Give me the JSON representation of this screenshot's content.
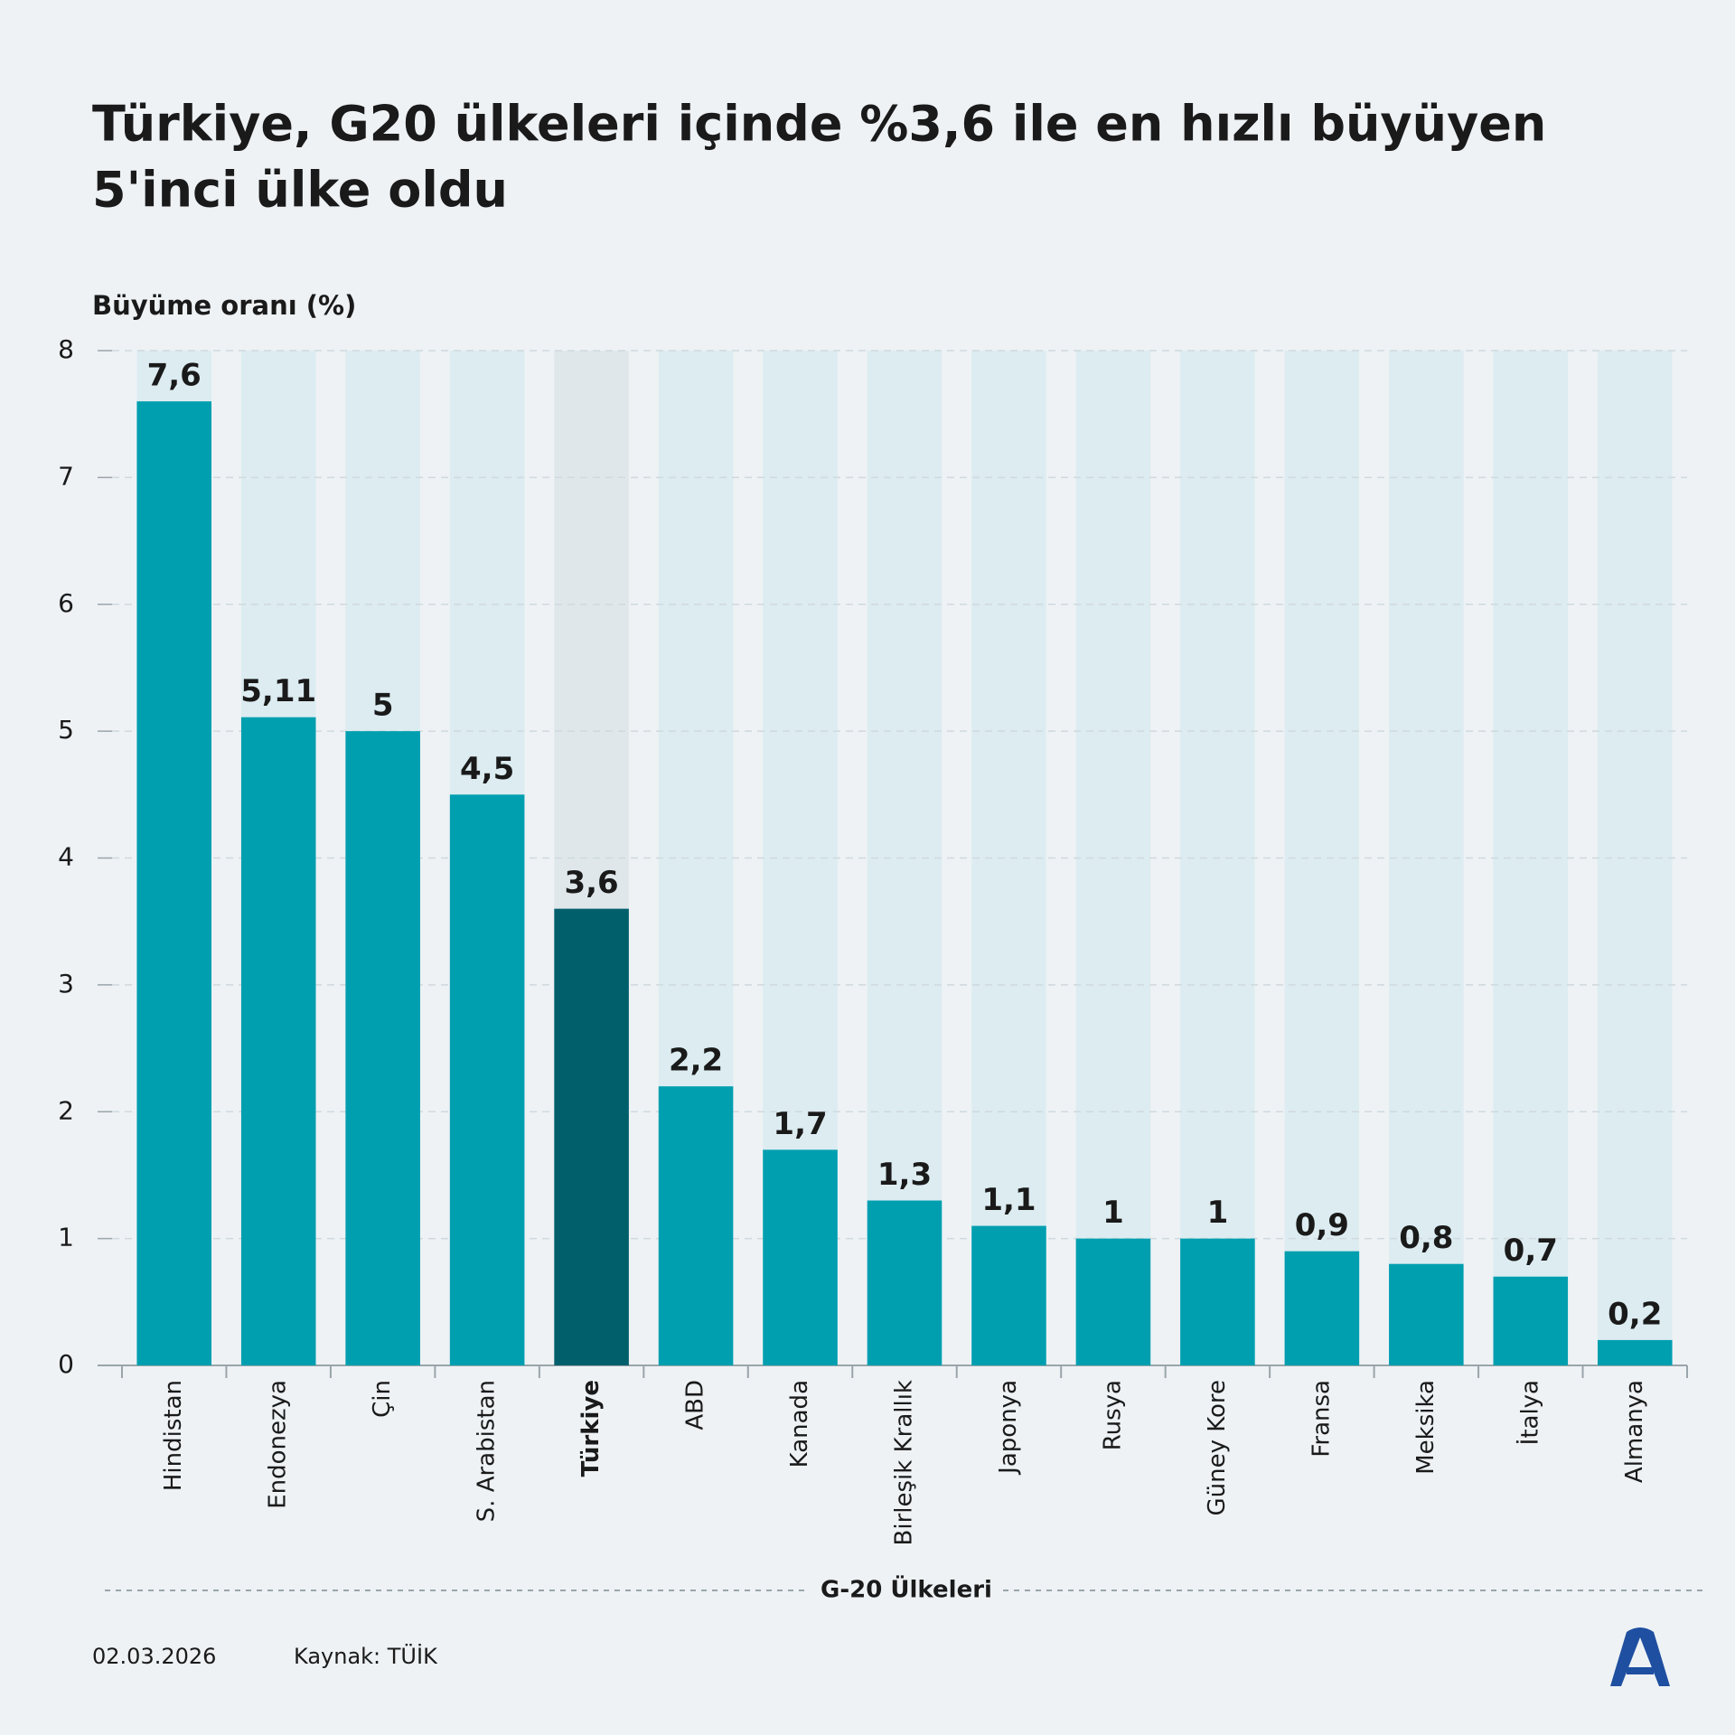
{
  "chart_data": {
    "type": "bar",
    "title": [
      "Türkiye, G20 ülkeleri içinde %3,6 ile en hızlı büyüyen",
      "5'inci ülke oldu"
    ],
    "y_label": "Büyüme oranı (%)",
    "x_label": "G-20 Ülkeleri",
    "categories": [
      "Hindistan",
      "Endonezya",
      "Çin",
      "S. Arabistan",
      "Türkiye",
      "ABD",
      "Kanada",
      "Birleşik Krallık",
      "Japonya",
      "Rusya",
      "Güney Kore",
      "Fransa",
      "Meksika",
      "İtalya",
      "Almanya"
    ],
    "values": [
      7.6,
      5.11,
      5,
      4.5,
      3.6,
      2.2,
      1.7,
      1.3,
      1.1,
      1,
      1,
      0.9,
      0.8,
      0.7,
      0.2
    ],
    "value_labels": [
      "7,6",
      "5,11",
      "5",
      "4,5",
      "3,6",
      "2,2",
      "1,7",
      "1,3",
      "1,1",
      "1",
      "1",
      "0,9",
      "0,8",
      "0,7",
      "0,2"
    ],
    "color": "#009fb0",
    "highlight": "Türkiye",
    "highlight_color": "#005f6b",
    "ylim": [
      0,
      8
    ],
    "yticks": [
      0,
      1,
      2,
      3,
      4,
      5,
      6,
      7,
      8
    ],
    "grid": true,
    "date": "02.03.2026",
    "source": "Kaynak: TÜİK"
  }
}
